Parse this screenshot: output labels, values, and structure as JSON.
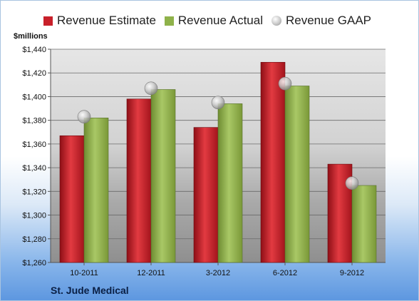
{
  "chart_data": {
    "type": "bar",
    "title": "",
    "ylabel": "$millions",
    "xlabel": "",
    "ylim": [
      1260,
      1440
    ],
    "yticks": [
      1260,
      1280,
      1300,
      1320,
      1340,
      1360,
      1380,
      1400,
      1420,
      1440
    ],
    "ytick_labels": [
      "$1,260",
      "$1,280",
      "$1,300",
      "$1,320",
      "$1,340",
      "$1,360",
      "$1,380",
      "$1,400",
      "$1,420",
      "$1,440"
    ],
    "categories": [
      "10-2011",
      "12-2011",
      "3-2012",
      "6-2012",
      "9-2012"
    ],
    "series": [
      {
        "name": "Revenue Estimate",
        "kind": "bar",
        "color": "#c8202a",
        "values": [
          1367,
          1398,
          1374,
          1429,
          1343
        ]
      },
      {
        "name": "Revenue Actual",
        "kind": "bar",
        "color": "#8fb24a",
        "values": [
          1382,
          1406,
          1394,
          1409,
          1325
        ]
      },
      {
        "name": "Revenue GAAP",
        "kind": "marker",
        "color": "#b8b8b8",
        "values": [
          1383,
          1407,
          1395,
          1411,
          1327
        ]
      }
    ],
    "legend_position": "top",
    "grid": true
  },
  "footer": {
    "company": "St. Jude Medical"
  }
}
